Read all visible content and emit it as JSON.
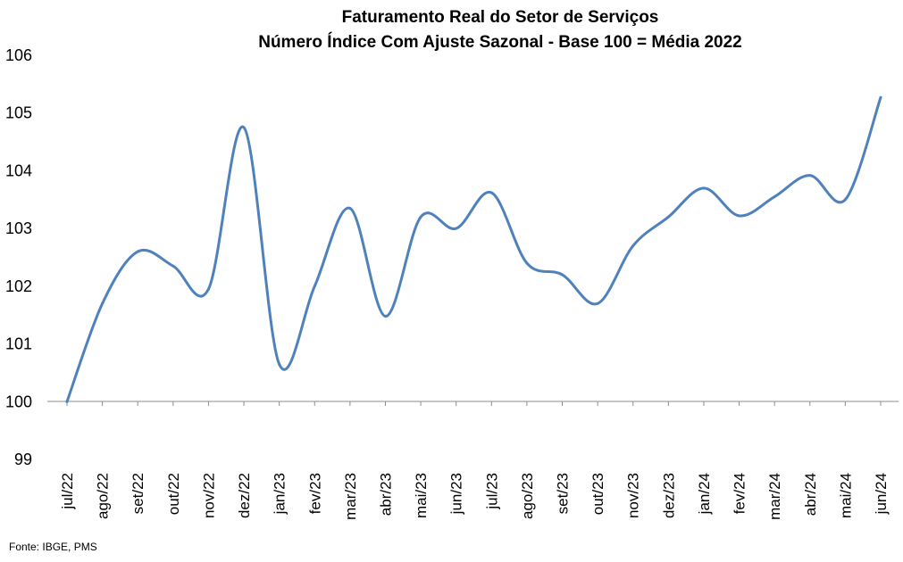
{
  "chart_data": {
    "type": "line",
    "title": "Faturamento Real do Setor de Serviços",
    "subtitle": "Número Índice Com Ajuste Sazonal - Base 100 = Média 2022",
    "xlabel": "",
    "ylabel": "",
    "ylim": [
      99,
      106
    ],
    "yticks": [
      99,
      100,
      101,
      102,
      103,
      104,
      105,
      106
    ],
    "grid": false,
    "legend": "none",
    "categories": [
      "jul/22",
      "ago/22",
      "set/22",
      "out/22",
      "nov/22",
      "dez/22",
      "jan/23",
      "fev/23",
      "mar/23",
      "abr/23",
      "mai/23",
      "jun/23",
      "jul/23",
      "ago/23",
      "set/23",
      "out/23",
      "nov/23",
      "dez/23",
      "jan/24",
      "fev/24",
      "mar/24",
      "abr/24",
      "mai/24",
      "jun/24"
    ],
    "series": [
      {
        "color": "#4F81BD",
        "values": [
          100.0,
          101.7,
          102.6,
          102.35,
          101.95,
          104.75,
          100.65,
          102.0,
          103.35,
          101.48,
          103.2,
          103.0,
          103.62,
          102.4,
          102.2,
          101.7,
          102.7,
          103.2,
          103.7,
          103.22,
          103.55,
          103.92,
          103.5,
          105.27
        ]
      }
    ]
  },
  "footer": {
    "source": "Fonte: IBGE, PMS"
  }
}
